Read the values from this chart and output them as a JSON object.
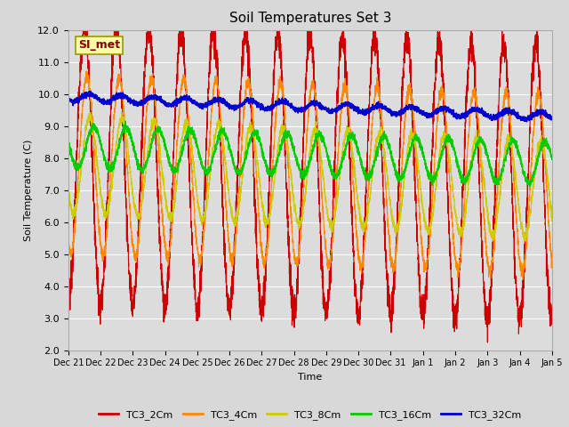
{
  "title": "Soil Temperatures Set 3",
  "xlabel": "Time",
  "ylabel": "Soil Temperature (C)",
  "ylim": [
    2.0,
    12.0
  ],
  "yticks": [
    2.0,
    3.0,
    4.0,
    5.0,
    6.0,
    7.0,
    8.0,
    9.0,
    10.0,
    11.0,
    12.0
  ],
  "fig_bg_color": "#d8d8d8",
  "plot_bg_color": "#dcdcdc",
  "series_colors": {
    "TC3_2Cm": "#cc0000",
    "TC3_4Cm": "#ff8800",
    "TC3_8Cm": "#cccc00",
    "TC3_16Cm": "#00cc00",
    "TC3_32Cm": "#0000cc"
  },
  "annotation_text": "SI_met",
  "annotation_color": "#880000",
  "annotation_bg": "#ffffaa",
  "x_tick_labels": [
    "Dec 21",
    "Dec 22",
    "Dec 23",
    "Dec 24",
    "Dec 25",
    "Dec 26",
    "Dec 27",
    "Dec 28",
    "Dec 29",
    "Dec 30",
    "Dec 31",
    "Jan 1",
    "Jan 2",
    "Jan 3",
    "Jan 4",
    "Jan 5"
  ],
  "n_points": 4320,
  "n_days": 15
}
